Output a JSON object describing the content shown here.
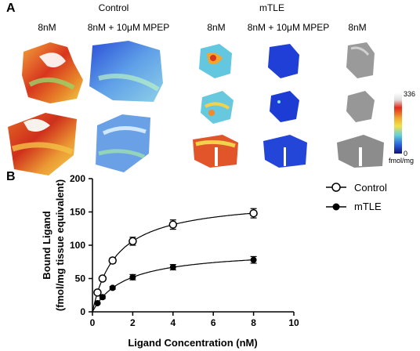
{
  "panel_a": {
    "letter": "A",
    "control": {
      "title": "Control",
      "columns": [
        "8nM",
        "8nM + 10μM MPEP"
      ]
    },
    "mtle": {
      "title": "mTLE",
      "columns": [
        "8nM",
        "8nM + 10μM MPEP",
        "8nM"
      ]
    },
    "colorbar": {
      "max": "336",
      "min": "0",
      "unit": "fmol/mg"
    }
  },
  "panel_b": {
    "letter": "B",
    "legend": [
      {
        "name": "Control",
        "marker": "open-circle"
      },
      {
        "name": "mTLE",
        "marker": "filled-circle"
      }
    ]
  },
  "chart_data": {
    "type": "scatter",
    "xlabel": "Ligand Concentration (nM)",
    "ylabel": "Bound Ligand",
    "ylabel_sub": "(fmol/mg tissue equivalent)",
    "xlim": [
      0,
      10
    ],
    "ylim": [
      0,
      200
    ],
    "xticks": [
      0,
      2,
      4,
      6,
      8,
      10
    ],
    "yticks": [
      0,
      50,
      100,
      150,
      200
    ],
    "series": [
      {
        "name": "Control",
        "marker": "open",
        "x": [
          0.25,
          0.5,
          1,
          2,
          4,
          8
        ],
        "y": [
          29,
          50,
          77,
          106,
          131,
          148
        ],
        "err": [
          2,
          3,
          4,
          6,
          7,
          7
        ]
      },
      {
        "name": "mTLE",
        "marker": "filled",
        "x": [
          0.25,
          0.5,
          1,
          2,
          4,
          8
        ],
        "y": [
          13,
          22,
          36,
          52,
          67,
          78
        ],
        "err": [
          1,
          2,
          2,
          4,
          4,
          5
        ]
      }
    ],
    "fit": "one-site saturation curve"
  }
}
